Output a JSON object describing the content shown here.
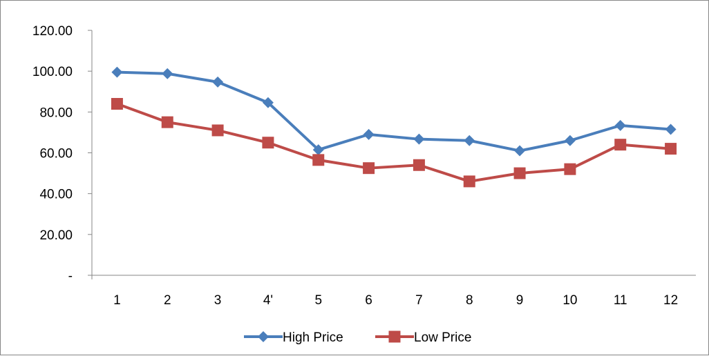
{
  "chart_data": {
    "type": "line",
    "categories": [
      "1",
      "2",
      "3",
      "4'",
      "5",
      "6",
      "7",
      "8",
      "9",
      "10",
      "11",
      "12"
    ],
    "series": [
      {
        "name": "High Price",
        "color": "#4a7ebb",
        "marker": "diamond",
        "values": [
          99.5,
          98.8,
          94.7,
          84.6,
          61.5,
          69.0,
          66.7,
          66.0,
          61.0,
          66.0,
          73.4,
          71.5
        ]
      },
      {
        "name": "Low Price",
        "color": "#be4b48",
        "marker": "square",
        "values": [
          84.0,
          75.0,
          71.0,
          65.0,
          56.5,
          52.5,
          54.0,
          46.0,
          50.0,
          52.0,
          64.0,
          62.0
        ]
      }
    ],
    "y_tick_labels": [
      "-",
      "20.00",
      "40.00",
      "60.00",
      "80.00",
      "100.00",
      "120.00"
    ],
    "ylim": [
      0,
      120
    ],
    "y_step": 20,
    "grid": false,
    "legend_position": "bottom"
  }
}
